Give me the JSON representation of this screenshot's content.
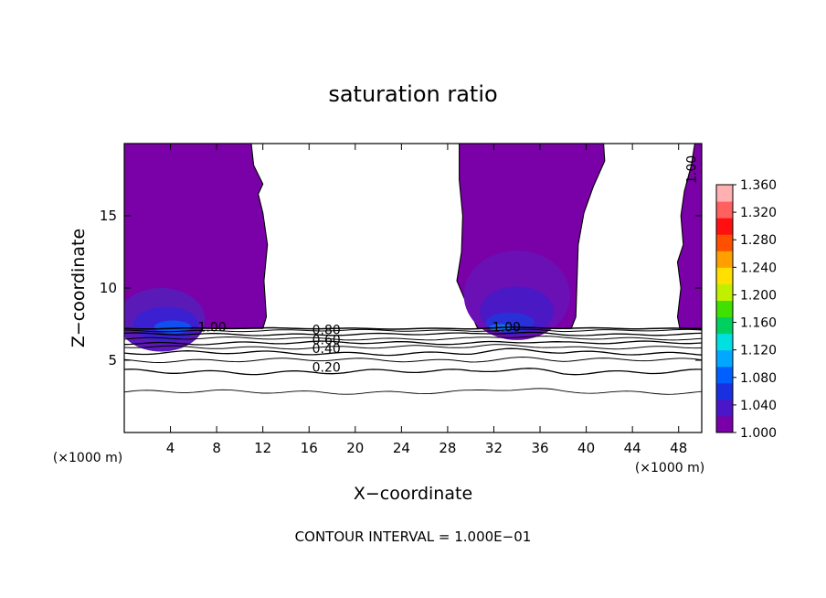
{
  "chart_data": {
    "type": "heatmap",
    "title": "saturation ratio",
    "xlabel": "X−coordinate",
    "ylabel": "Z−coordinate",
    "x_unit_left": "(×1000 m)",
    "x_unit_right": "(×1000 m)",
    "xlim": [
      0,
      50
    ],
    "ylim": [
      0,
      20
    ],
    "xticks": [
      4,
      8,
      12,
      16,
      20,
      24,
      28,
      32,
      36,
      40,
      44,
      48
    ],
    "yticks": [
      5,
      10,
      15
    ],
    "footer": "CONTOUR INTERVAL = 1.000E−01",
    "colorbar": {
      "ticks": [
        "1.360",
        "1.320",
        "1.280",
        "1.240",
        "1.200",
        "1.160",
        "1.120",
        "1.080",
        "1.040",
        "1.000"
      ],
      "min": 1.0,
      "max": 1.36,
      "colors": [
        "#7a00a8",
        "#4a16c8",
        "#1a30e0",
        "#0060ff",
        "#00a8ff",
        "#00e0e0",
        "#00d060",
        "#40e000",
        "#c0f000",
        "#ffe000",
        "#ffa000",
        "#ff5000",
        "#ff1010",
        "#ff6060",
        "#ffb0b0"
      ]
    },
    "contour_labels": [
      {
        "text": "1.00",
        "x": 7.6,
        "z": 7.0
      },
      {
        "text": "1.00",
        "x": 33.1,
        "z": 7.0
      },
      {
        "text": "1.00",
        "x": 49.5,
        "z": 18.2
      },
      {
        "text": "0.80",
        "x": 17.5,
        "z": 6.8
      },
      {
        "text": "0.60",
        "x": 17.5,
        "z": 6.1
      },
      {
        "text": "0.40",
        "x": 17.5,
        "z": 5.5
      },
      {
        "text": "0.20",
        "x": 17.5,
        "z": 4.2
      }
    ],
    "contour_lines": [
      0.2,
      0.4,
      0.6,
      0.8,
      0.9,
      1.0
    ]
  }
}
